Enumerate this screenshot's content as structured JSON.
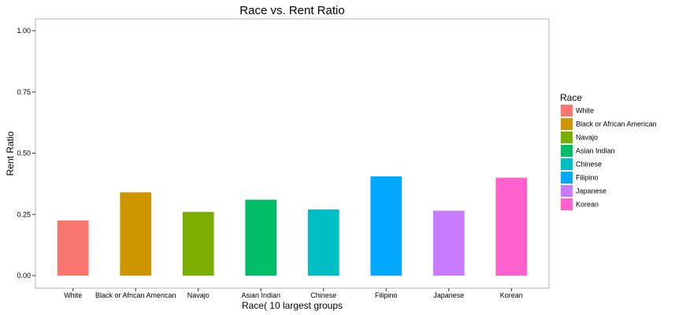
{
  "chart_data": {
    "type": "bar",
    "title": "Race vs. Rent Ratio",
    "xlabel": "Race( 10 largest groups",
    "ylabel": "Rent Ratio",
    "ylim": [
      0,
      1
    ],
    "yticks": [
      "0.00",
      "0.25",
      "0.50",
      "0.75",
      "1.00"
    ],
    "categories": [
      "White",
      "Black or African American",
      "Navajo",
      "Asian Indian",
      "Chinese",
      "Filipino",
      "Japanese",
      "Korean"
    ],
    "values": [
      0.225,
      0.34,
      0.26,
      0.31,
      0.27,
      0.405,
      0.265,
      0.4
    ],
    "colors": [
      "#F8766D",
      "#CD9600",
      "#7CAE00",
      "#00BE67",
      "#00BFC4",
      "#00A9FF",
      "#C77CFF",
      "#FF61CC"
    ],
    "grid": false,
    "legend": {
      "title": "Race",
      "position": "right",
      "entries": [
        "White",
        "Black or African American",
        "Navajo",
        "Asian Indian",
        "Chinese",
        "Filipino",
        "Japanese",
        "Korean"
      ]
    }
  }
}
